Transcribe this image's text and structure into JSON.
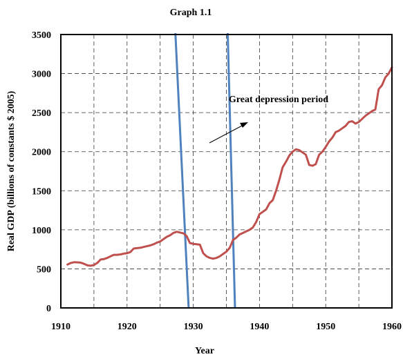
{
  "chart_data": {
    "type": "line",
    "title": "Graph 1.1",
    "xlabel": "Year",
    "ylabel": "Real GDP (billions of constants $ 2005)",
    "xlim": [
      1910,
      1960
    ],
    "ylim": [
      0,
      3500
    ],
    "x_ticks": [
      1910,
      1920,
      1930,
      1940,
      1950,
      1960
    ],
    "y_ticks": [
      0,
      500,
      1000,
      1500,
      2000,
      2500,
      3000,
      3500
    ],
    "grid": true,
    "annotation": {
      "text": "Great depression period",
      "arrow": true
    },
    "period_markers": [
      {
        "x_top": 1927.3,
        "x_bottom": 1929.3
      },
      {
        "x_top": 1935.2,
        "x_bottom": 1936.3
      }
    ],
    "colors": {
      "series": "#c0504d",
      "markers": "#4f81bd"
    },
    "series": [
      {
        "x": [
          1911,
          1911.5,
          1912,
          1913,
          1913.5,
          1914,
          1914.5,
          1915,
          1915.5,
          1916,
          1916.5,
          1917,
          1917.5,
          1918,
          1918.5,
          1919,
          1919.5,
          1920,
          1920.5,
          1921,
          1921.5,
          1922,
          1922.5,
          1923,
          1923.5,
          1924,
          1924.5,
          1925,
          1925.5,
          1926,
          1926.5,
          1927,
          1927.5,
          1928,
          1928.5,
          1929,
          1929.5,
          1930,
          1930.5,
          1931,
          1931.5,
          1932,
          1932.5,
          1933,
          1933.5,
          1934,
          1934.5,
          1935,
          1935.5,
          1936,
          1936.5,
          1937,
          1937.5,
          1938,
          1938.5,
          1939,
          1939.5,
          1940,
          1940.5,
          1941,
          1941.5,
          1942,
          1942.5,
          1943,
          1943.5,
          1944,
          1944.5,
          1945,
          1945.5,
          1946,
          1946.5,
          1947,
          1947.5,
          1948,
          1948.5,
          1949,
          1949.5,
          1950,
          1950.5,
          1951,
          1951.5,
          1952,
          1952.5,
          1953,
          1953.5,
          1954,
          1954.5,
          1955,
          1955.5,
          1956,
          1956.5,
          1957,
          1957.5,
          1958,
          1958.5,
          1959,
          1959.5,
          1960
        ],
        "values": [
          555,
          575,
          585,
          580,
          565,
          545,
          540,
          550,
          575,
          620,
          625,
          640,
          660,
          680,
          680,
          685,
          695,
          700,
          715,
          760,
          765,
          770,
          780,
          790,
          800,
          815,
          835,
          850,
          880,
          910,
          930,
          960,
          975,
          965,
          955,
          920,
          830,
          820,
          815,
          810,
          700,
          660,
          640,
          630,
          640,
          660,
          690,
          720,
          770,
          870,
          900,
          940,
          960,
          980,
          1000,
          1030,
          1100,
          1200,
          1230,
          1260,
          1340,
          1380,
          1500,
          1640,
          1800,
          1870,
          1950,
          2000,
          2030,
          2020,
          1990,
          1960,
          1830,
          1820,
          1840,
          1960,
          2000,
          2060,
          2130,
          2180,
          2250,
          2270,
          2300,
          2330,
          2380,
          2390,
          2360,
          2380,
          2420,
          2460,
          2490,
          2520,
          2540,
          2800,
          2850,
          2950,
          3000,
          3080
        ]
      }
    ]
  }
}
